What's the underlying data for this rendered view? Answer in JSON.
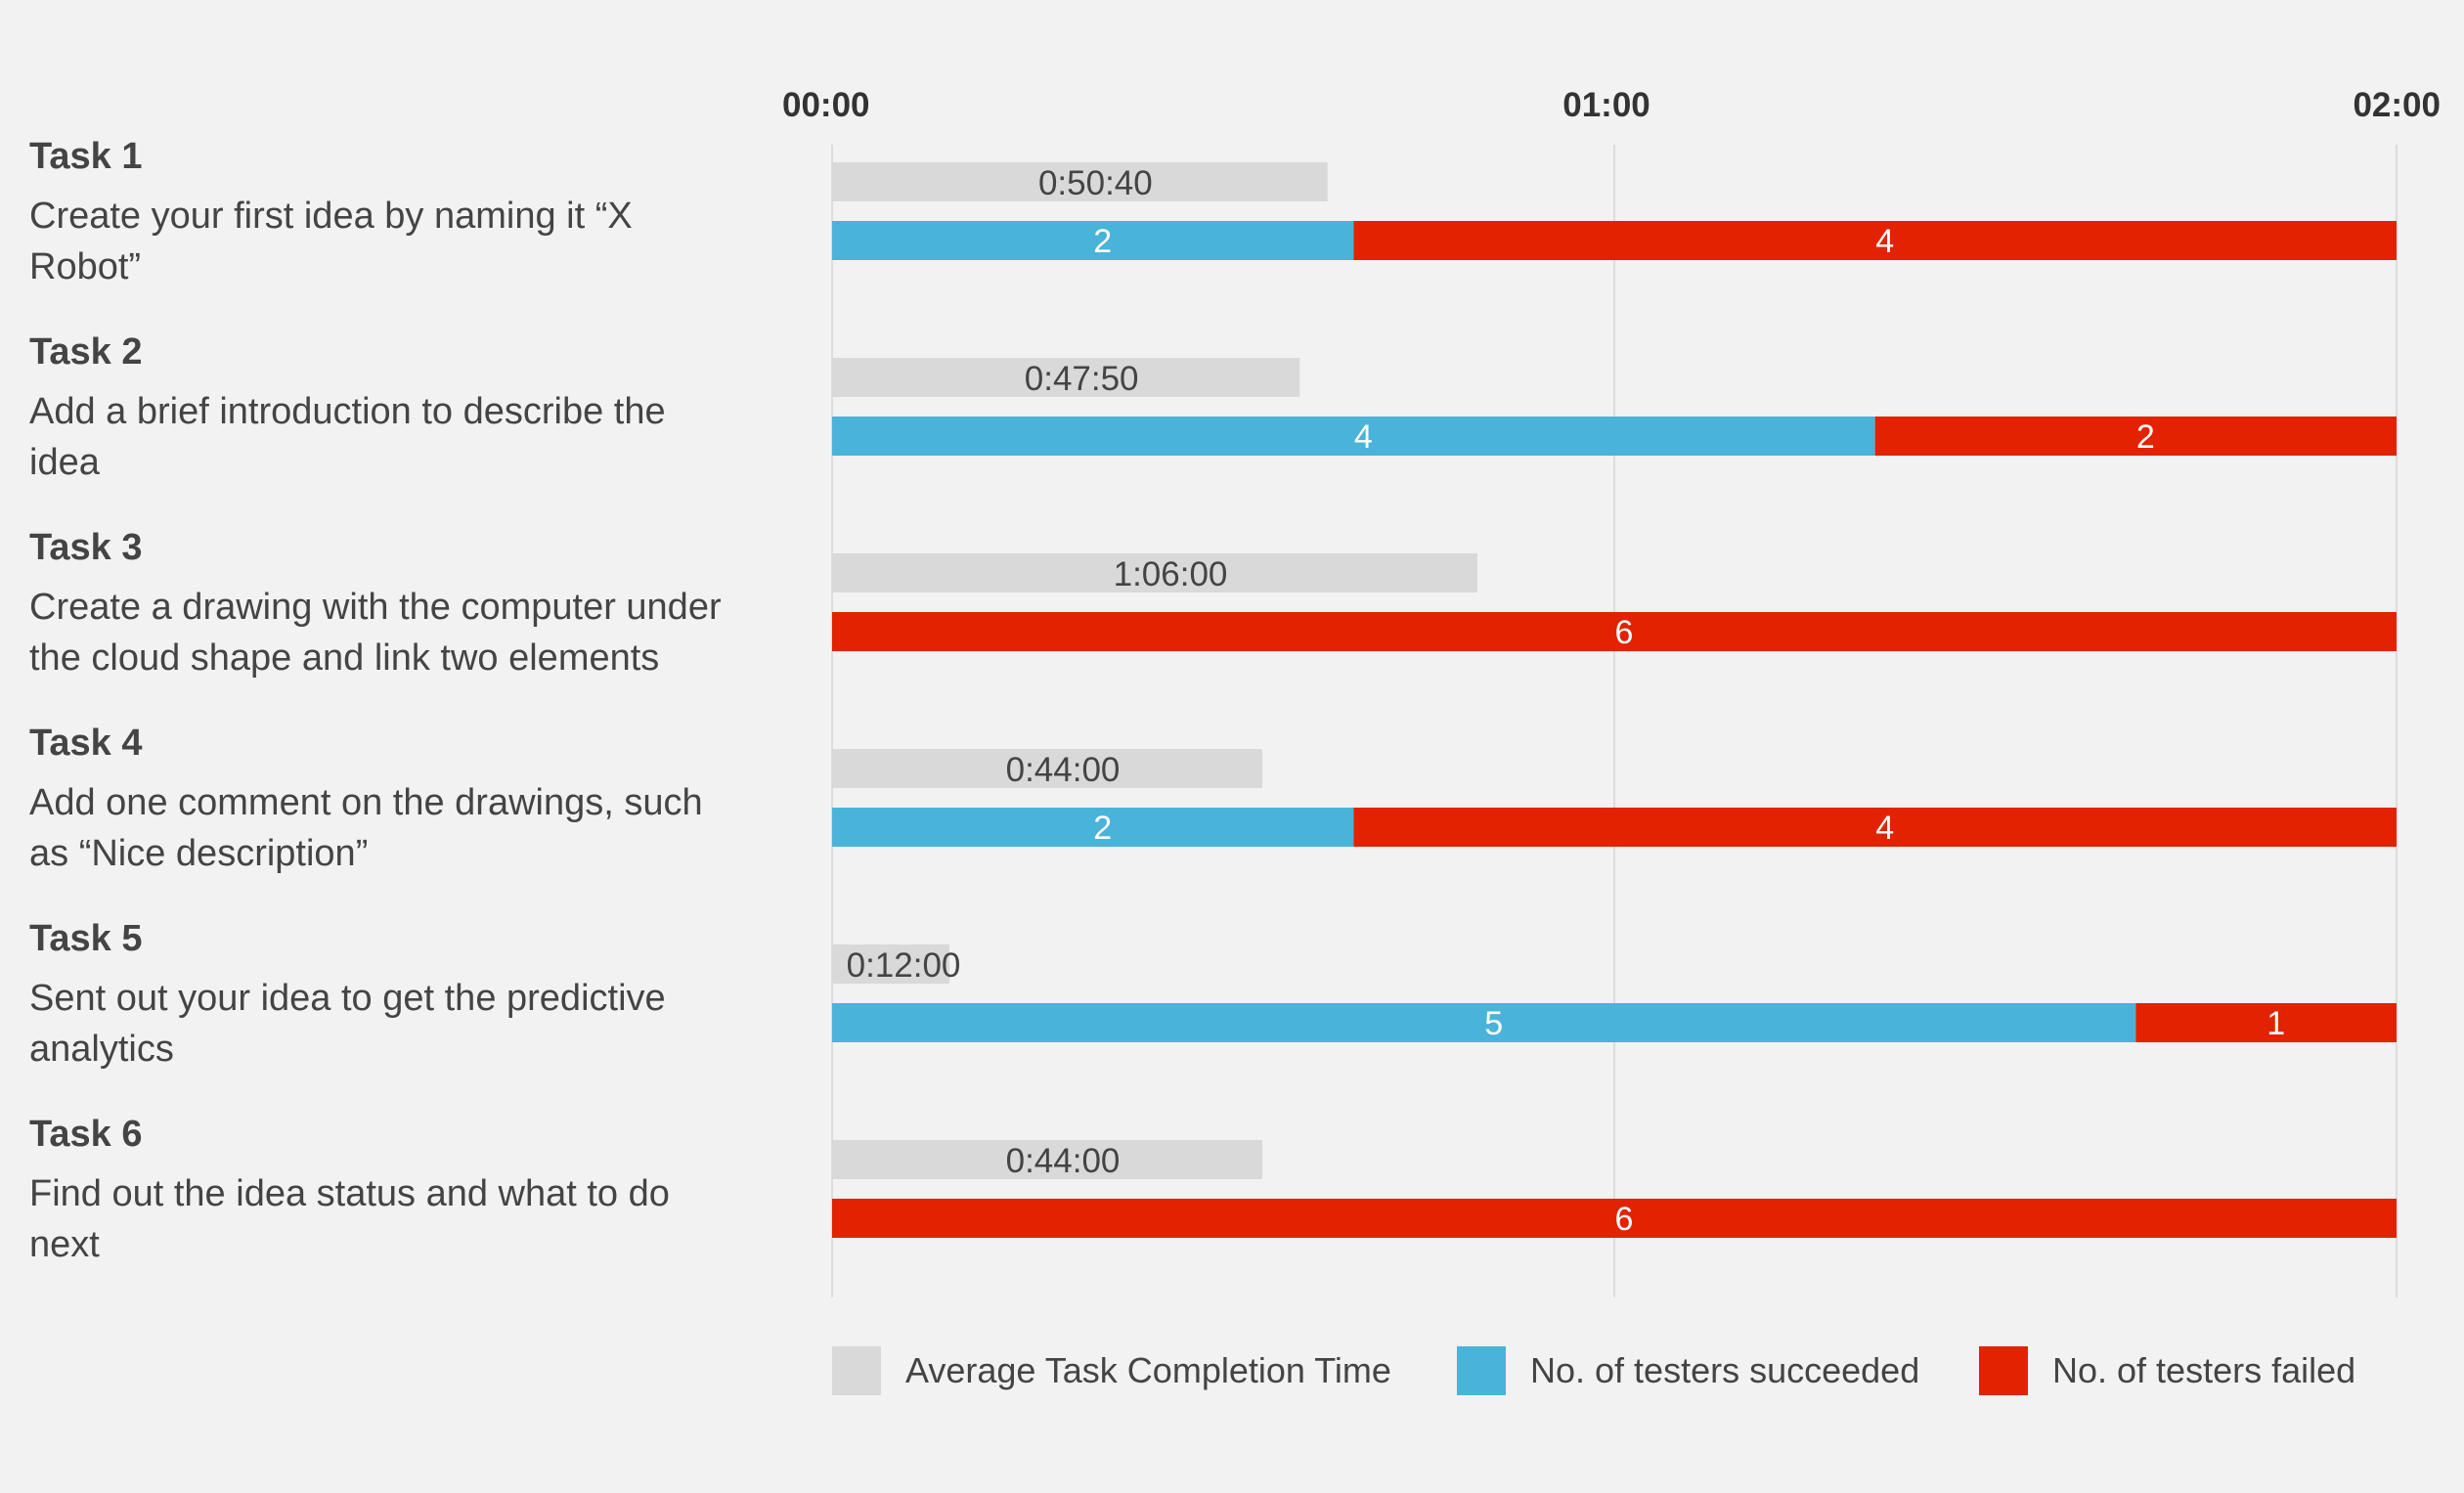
{
  "chart_data": {
    "type": "bar",
    "x_axis": {
      "ticks": [
        "00:00",
        "01:00",
        "02:00"
      ],
      "range_seconds": [
        0,
        160
      ]
    },
    "tasks": [
      {
        "title": "Task 1",
        "description": [
          "Create your first idea by naming it “X",
          "Robot”"
        ],
        "avg_time_label": "0:50:40",
        "avg_time_seconds": 50.67,
        "succeeded": 2,
        "failed": 4
      },
      {
        "title": "Task 2",
        "description": [
          "Add a brief introduction to describe the",
          "idea"
        ],
        "avg_time_label": "0:47:50",
        "avg_time_seconds": 47.83,
        "succeeded": 4,
        "failed": 2
      },
      {
        "title": "Task 3",
        "description": [
          "Create a drawing with the computer under",
          "the cloud shape and link two elements"
        ],
        "avg_time_label": "1:06:00",
        "avg_time_seconds": 66,
        "succeeded": 0,
        "failed": 6
      },
      {
        "title": "Task 4",
        "description": [
          "Add one comment on the drawings, such",
          "as “Nice description”"
        ],
        "avg_time_label": "0:44:00",
        "avg_time_seconds": 44,
        "succeeded": 2,
        "failed": 4
      },
      {
        "title": "Task 5",
        "description": [
          "Sent out your idea to get the predictive",
          "analytics"
        ],
        "avg_time_label": "0:12:00",
        "avg_time_seconds": 12,
        "succeeded": 5,
        "failed": 1
      },
      {
        "title": "Task 6",
        "description": [
          "Find out the idea status and what to do",
          "next"
        ],
        "avg_time_label": "0:44:00",
        "avg_time_seconds": 44,
        "succeeded": 0,
        "failed": 6
      }
    ],
    "series": [
      {
        "name": "Average Task Completion Time",
        "color": "#d9d9d9"
      },
      {
        "name": "No. of testers succeeded",
        "color": "#4ab3d9"
      },
      {
        "name": "No. of testers failed",
        "color": "#e22200"
      }
    ],
    "grid": true,
    "legend_position": "bottom"
  }
}
